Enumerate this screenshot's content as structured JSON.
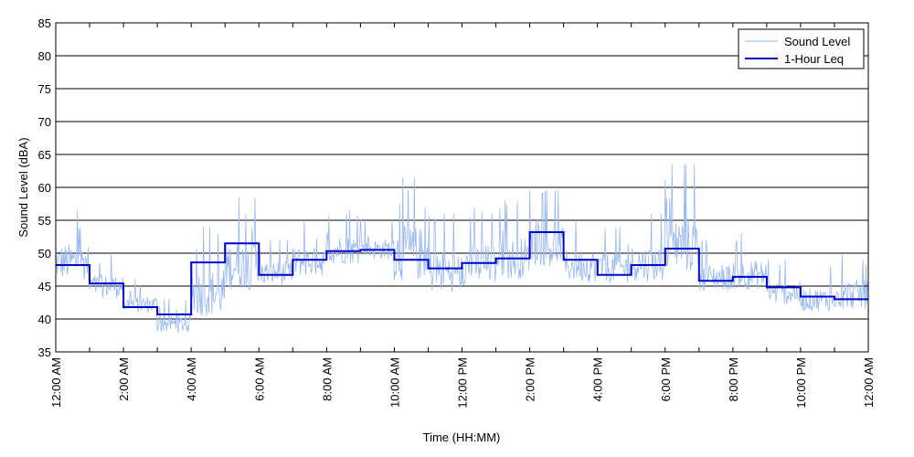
{
  "chart_data": {
    "type": "line",
    "xlabel": "Time (HH:MM)",
    "ylabel": "Sound Level (dBA)",
    "ylim": [
      35,
      85
    ],
    "xlim_hours": [
      0,
      24
    ],
    "y_ticks": [
      35,
      40,
      45,
      50,
      55,
      60,
      65,
      70,
      75,
      80,
      85
    ],
    "x_tick_labels": [
      "12:00 AM",
      "2:00 AM",
      "4:00 AM",
      "6:00 AM",
      "8:00 AM",
      "10:00 AM",
      "12:00 PM",
      "2:00 PM",
      "4:00 PM",
      "6:00 PM",
      "8:00 PM",
      "10:00 PM",
      "12:00 AM"
    ],
    "grid": "horizontal",
    "legend_position": "top-right",
    "colors": {
      "sound_level": "#99b8f0",
      "leq": "#0000cc"
    },
    "series": [
      {
        "name": "Sound Level",
        "style": "thin noisy line",
        "hourly_range": [
          {
            "hour": 0,
            "min": 44,
            "max": 56.5
          },
          {
            "hour": 1,
            "min": 42,
            "max": 50
          },
          {
            "hour": 2,
            "min": 40,
            "max": 46
          },
          {
            "hour": 3,
            "min": 37,
            "max": 43
          },
          {
            "hour": 4,
            "min": 38,
            "max": 54
          },
          {
            "hour": 5,
            "min": 42,
            "max": 58.5
          },
          {
            "hour": 6,
            "min": 44,
            "max": 52
          },
          {
            "hour": 7,
            "min": 45,
            "max": 55
          },
          {
            "hour": 8,
            "min": 47,
            "max": 56.5
          },
          {
            "hour": 9,
            "min": 48,
            "max": 55
          },
          {
            "hour": 10,
            "min": 43,
            "max": 61.5
          },
          {
            "hour": 11,
            "min": 42,
            "max": 56
          },
          {
            "hour": 12,
            "min": 43,
            "max": 57
          },
          {
            "hour": 13,
            "min": 44,
            "max": 58
          },
          {
            "hour": 14,
            "min": 46,
            "max": 59.5
          },
          {
            "hour": 15,
            "min": 44,
            "max": 55
          },
          {
            "hour": 16,
            "min": 44,
            "max": 54
          },
          {
            "hour": 17,
            "min": 44,
            "max": 56
          },
          {
            "hour": 18,
            "min": 44,
            "max": 63.5
          },
          {
            "hour": 19,
            "min": 43,
            "max": 52
          },
          {
            "hour": 20,
            "min": 43,
            "max": 53
          },
          {
            "hour": 21,
            "min": 41,
            "max": 49
          },
          {
            "hour": 22,
            "min": 40,
            "max": 48
          },
          {
            "hour": 23,
            "min": 40,
            "max": 50
          }
        ]
      },
      {
        "name": "1-Hour Leq",
        "style": "step",
        "x_hours": [
          0,
          1,
          2,
          3,
          4,
          5,
          6,
          7,
          8,
          9,
          10,
          11,
          12,
          13,
          14,
          15,
          16,
          17,
          18,
          19,
          20,
          21,
          22,
          23
        ],
        "values": [
          48.2,
          45.4,
          41.8,
          40.7,
          48.6,
          51.5,
          46.7,
          49.0,
          50.3,
          50.5,
          49.0,
          47.7,
          48.5,
          49.2,
          53.2,
          49.0,
          46.7,
          48.2,
          50.7,
          45.8,
          46.4,
          44.8,
          43.4,
          43.0
        ]
      }
    ]
  }
}
